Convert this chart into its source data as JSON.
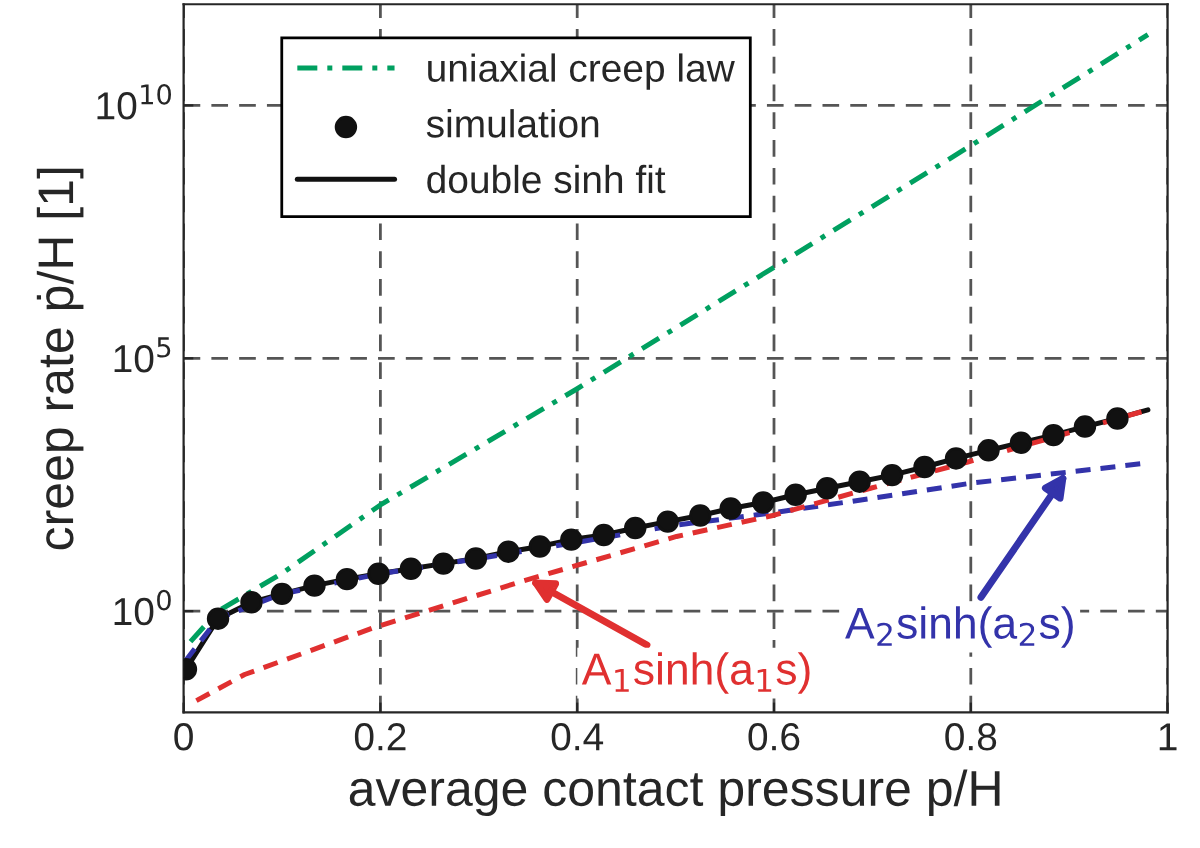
{
  "chart_data": {
    "type": "line",
    "xlabel": "average contact pressure p/H",
    "ylabel": "creep rate ṗ/H [1]",
    "log": "y",
    "xlim": [
      0,
      1
    ],
    "ylim": [
      0.01,
      1000000000000.0
    ],
    "xticks": [
      0,
      0.2,
      0.4,
      0.6,
      0.8,
      1
    ],
    "yticks": [
      {
        "value": 1,
        "label": "10$^{0}$"
      },
      {
        "value": 100000,
        "label": "10$^{5}$"
      },
      {
        "value": 10000000000,
        "label": "10$^{10}$"
      }
    ],
    "grid": true,
    "legend": "top left",
    "series": [
      {
        "name": "uniaxial creep law",
        "color": "#00a060",
        "line_style": "dashdot",
        "marker": "none",
        "x": [
          0.007,
          0.035,
          0.1,
          0.2,
          0.4,
          0.6,
          0.8,
          0.98
        ],
        "values": [
          0.25,
          1.0,
          5.6,
          126,
          25000,
          6300000,
          1600000000,
          250000000000
        ]
      },
      {
        "name": "simulation",
        "type": "scatter",
        "color": "#111111",
        "marker": "circle",
        "x": [
          0.0024,
          0.035,
          0.069,
          0.1,
          0.133,
          0.166,
          0.198,
          0.231,
          0.264,
          0.297,
          0.33,
          0.362,
          0.394,
          0.427,
          0.459,
          0.492,
          0.525,
          0.556,
          0.589,
          0.622,
          0.654,
          0.687,
          0.72,
          0.753,
          0.785,
          0.818,
          0.851,
          0.884,
          0.916,
          0.949
        ],
        "values": [
          0.071,
          0.71,
          1.5,
          2.2,
          3.2,
          4.3,
          5.5,
          6.9,
          8.7,
          11,
          15,
          19,
          26,
          32,
          44,
          59,
          78,
          107,
          141,
          200,
          269,
          363,
          490,
          708,
          1047,
          1514,
          2138,
          3020,
          4467,
          6457
        ]
      },
      {
        "color": "#3333aa",
        "line_style": "dashed",
        "marker": "none",
        "x": [
          0.002,
          0.035,
          0.1,
          0.2,
          0.3,
          0.4,
          0.5,
          0.6,
          0.7,
          0.8,
          0.98
        ],
        "values": [
          0.105,
          0.71,
          2.2,
          5.5,
          11,
          23,
          50,
          89,
          170,
          339,
          851
        ]
      },
      {
        "color": "#e03030",
        "line_style": "dashed",
        "marker": "none",
        "x": [
          0.013,
          0.062,
          0.193,
          0.344,
          0.501,
          0.6,
          0.698,
          0.797,
          0.98
        ],
        "values": [
          0.017,
          0.056,
          0.47,
          3.9,
          30,
          79,
          269,
          891,
          9550
        ]
      },
      {
        "name": "double sinh fit",
        "color": "#111111",
        "line_style": "solid",
        "marker": "none",
        "x": [
          0.0024,
          0.035,
          0.069,
          0.1,
          0.133,
          0.166,
          0.198,
          0.231,
          0.264,
          0.297,
          0.33,
          0.362,
          0.394,
          0.427,
          0.459,
          0.492,
          0.525,
          0.556,
          0.589,
          0.622,
          0.654,
          0.687,
          0.72,
          0.753,
          0.785,
          0.818,
          0.851,
          0.884,
          0.916,
          0.949,
          0.98
        ],
        "values": [
          0.071,
          0.71,
          1.5,
          2.2,
          3.2,
          4.3,
          5.5,
          6.9,
          8.7,
          11,
          15,
          19,
          26,
          32,
          44,
          59,
          78,
          107,
          141,
          200,
          269,
          363,
          490,
          708,
          1047,
          1514,
          2138,
          3020,
          4467,
          6457,
          9550
        ]
      }
    ],
    "annotations": [
      {
        "text": "A$_{1}$sinh(a$_{1}$s)",
        "x": 0.351,
        "y": 4.3
      },
      {
        "text": "A$_{2}$sinh(a$_{2}$s)",
        "x": 0.898,
        "y": 562
      }
    ]
  }
}
